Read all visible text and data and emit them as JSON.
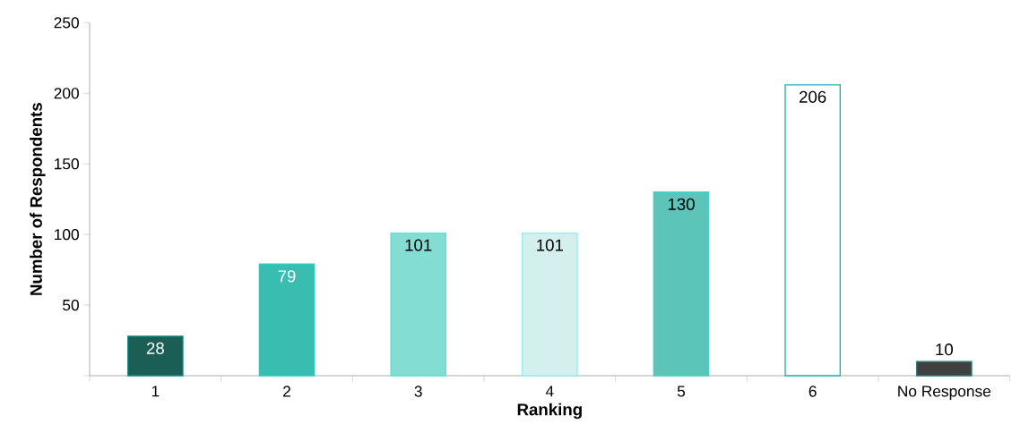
{
  "chart_data": {
    "type": "bar",
    "xlabel": "Ranking",
    "ylabel": "Number of Respondents",
    "categories": [
      "1",
      "2",
      "3",
      "4",
      "5",
      "6",
      "No Response"
    ],
    "values": [
      28,
      79,
      101,
      101,
      130,
      206,
      10
    ],
    "colors": [
      "#1a5e55",
      "#38bdb0",
      "#84ddd3",
      "#d4f0ee",
      "#5cc4b9",
      "#ffffff",
      "#404040"
    ],
    "data_labels": true,
    "ylim": [
      0,
      250
    ],
    "yticks": [
      {
        "value": 0,
        "label": null
      },
      50,
      100,
      150,
      200,
      250
    ],
    "grid": false
  }
}
